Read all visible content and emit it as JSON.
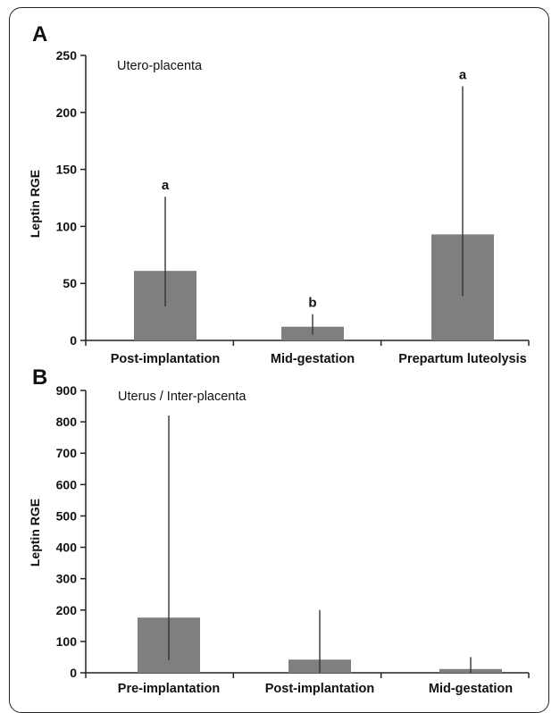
{
  "chart_data": [
    {
      "type": "bar",
      "panel": "A",
      "title": "Utero-placenta",
      "ylabel": "Leptin RGE",
      "xlabel": "",
      "ylim": [
        0,
        250
      ],
      "yticks": [
        0,
        50,
        100,
        150,
        200,
        250
      ],
      "categories": [
        "Post-implantation",
        "Mid-gestation",
        "Prepartum luteolysis"
      ],
      "values": [
        61,
        12,
        93
      ],
      "error_low": [
        30,
        5,
        39
      ],
      "error_high": [
        126,
        23,
        223
      ],
      "significance": [
        "a",
        "b",
        "a"
      ],
      "bar_color": "#7f7f7f",
      "grid": false
    },
    {
      "type": "bar",
      "panel": "B",
      "title": "Uterus / Inter-placenta",
      "ylabel": "Leptin RGE",
      "xlabel": "",
      "ylim": [
        0,
        900
      ],
      "yticks": [
        0,
        100,
        200,
        300,
        400,
        500,
        600,
        700,
        800,
        900
      ],
      "categories": [
        "Pre-implantation",
        "Post-implantation",
        "Mid-gestation"
      ],
      "values": [
        176,
        42,
        12
      ],
      "error_low": [
        40,
        0,
        0
      ],
      "error_high": [
        820,
        200,
        50
      ],
      "significance": [
        "",
        "",
        ""
      ],
      "bar_color": "#7f7f7f",
      "grid": false
    }
  ]
}
